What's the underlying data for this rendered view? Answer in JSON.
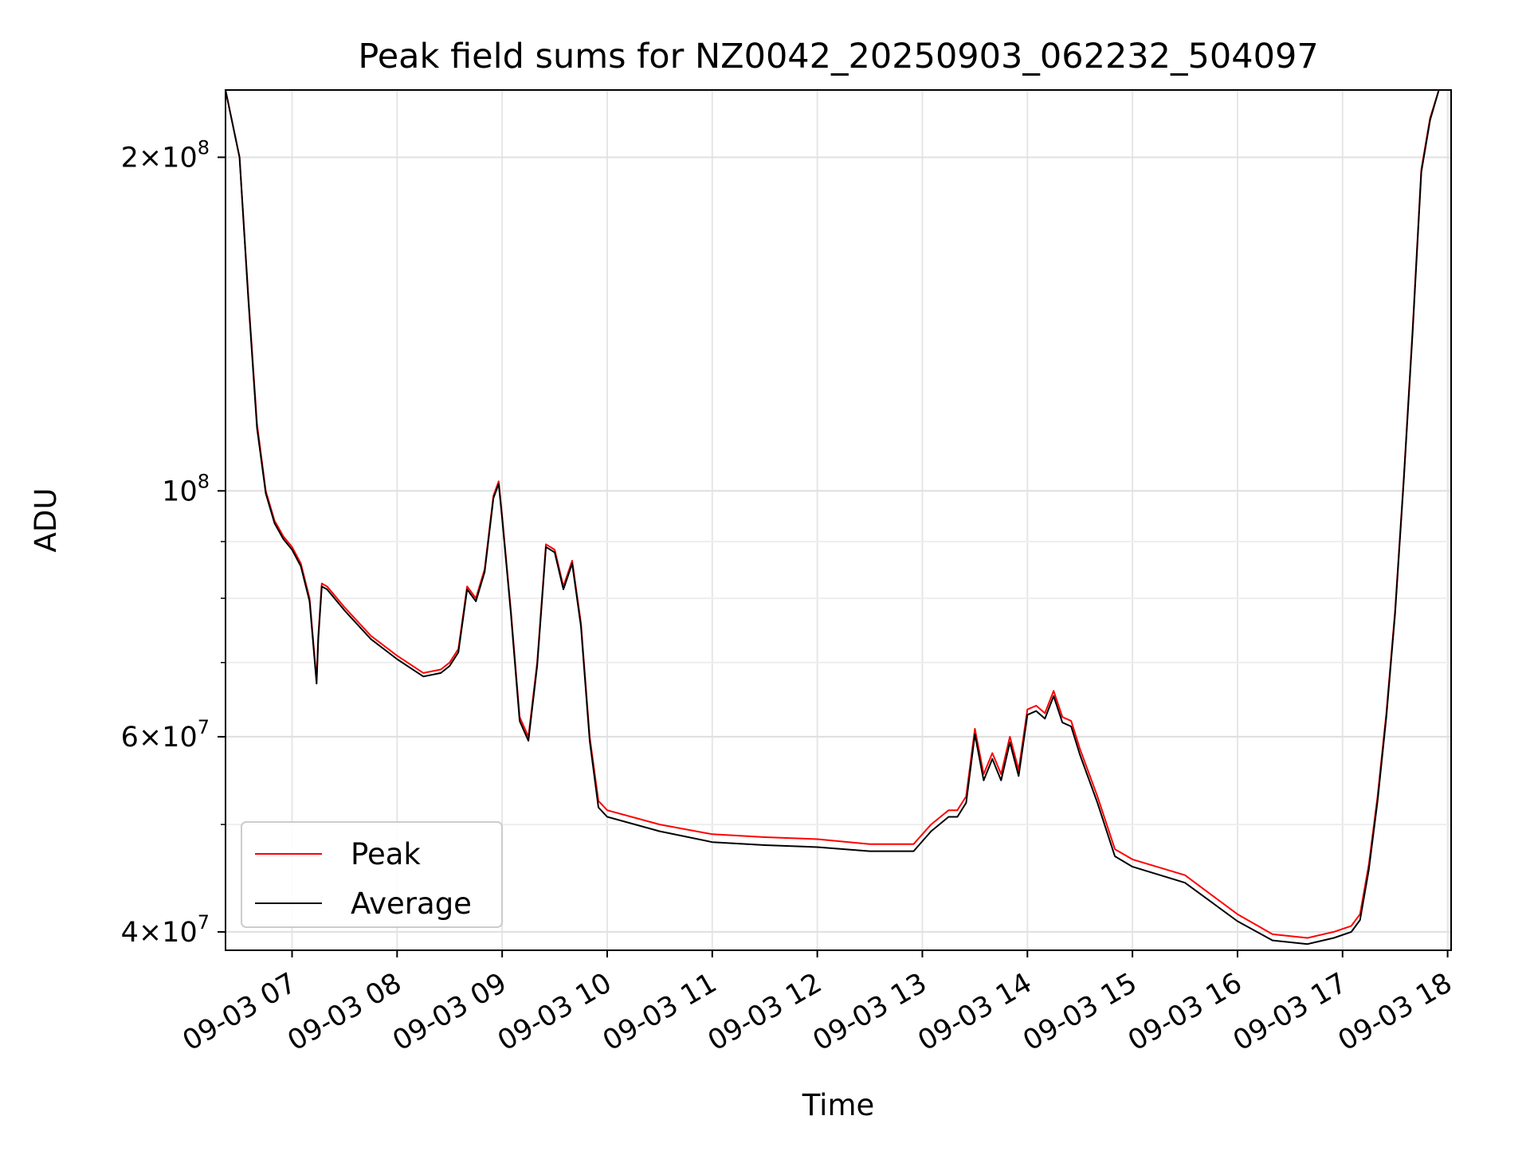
{
  "chart_data": {
    "type": "line",
    "title": "Peak field sums for NZ0042_20250903_062232_504097",
    "xlabel": "Time",
    "ylabel": "ADU",
    "yscale": "log",
    "grid": true,
    "legend_position": "lower-left",
    "x_ticks": [
      "09-03 07",
      "09-03 08",
      "09-03 09",
      "09-03 10",
      "09-03 11",
      "09-03 12",
      "09-03 13",
      "09-03 14",
      "09-03 15",
      "09-03 16",
      "09-03 17",
      "09-03 18"
    ],
    "y_ticks": [
      {
        "value": 40000000,
        "mantissa": "4",
        "exponent": "7"
      },
      {
        "value": 60000000,
        "mantissa": "6",
        "exponent": "7"
      },
      {
        "value": 100000000,
        "mantissa": "",
        "exponent": "8"
      },
      {
        "value": 200000000,
        "mantissa": "2",
        "exponent": "8"
      }
    ],
    "xlim": [
      "2025-09-03 06:22",
      "2025-09-03 18:02"
    ],
    "ylim": [
      38500000,
      230000000
    ],
    "series": [
      {
        "name": "Peak",
        "color": "#ff0000",
        "x": [
          "2025-09-03 06:22",
          "2025-09-03 06:30",
          "2025-09-03 06:35",
          "2025-09-03 06:40",
          "2025-09-03 06:45",
          "2025-09-03 06:50",
          "2025-09-03 06:55",
          "2025-09-03 07:00",
          "2025-09-03 07:05",
          "2025-09-03 07:10",
          "2025-09-03 07:14",
          "2025-09-03 07:15",
          "2025-09-03 07:17",
          "2025-09-03 07:20",
          "2025-09-03 07:30",
          "2025-09-03 07:45",
          "2025-09-03 08:00",
          "2025-09-03 08:15",
          "2025-09-03 08:25",
          "2025-09-03 08:30",
          "2025-09-03 08:35",
          "2025-09-03 08:40",
          "2025-09-03 08:45",
          "2025-09-03 08:50",
          "2025-09-03 08:55",
          "2025-09-03 08:58",
          "2025-09-03 09:00",
          "2025-09-03 09:05",
          "2025-09-03 09:10",
          "2025-09-03 09:15",
          "2025-09-03 09:20",
          "2025-09-03 09:25",
          "2025-09-03 09:30",
          "2025-09-03 09:35",
          "2025-09-03 09:40",
          "2025-09-03 09:45",
          "2025-09-03 09:50",
          "2025-09-03 09:55",
          "2025-09-03 10:00",
          "2025-09-03 10:30",
          "2025-09-03 11:00",
          "2025-09-03 11:30",
          "2025-09-03 12:00",
          "2025-09-03 12:30",
          "2025-09-03 12:55",
          "2025-09-03 13:05",
          "2025-09-03 13:15",
          "2025-09-03 13:20",
          "2025-09-03 13:25",
          "2025-09-03 13:30",
          "2025-09-03 13:35",
          "2025-09-03 13:40",
          "2025-09-03 13:45",
          "2025-09-03 13:50",
          "2025-09-03 13:55",
          "2025-09-03 14:00",
          "2025-09-03 14:05",
          "2025-09-03 14:10",
          "2025-09-03 14:15",
          "2025-09-03 14:20",
          "2025-09-03 14:25",
          "2025-09-03 14:30",
          "2025-09-03 14:40",
          "2025-09-03 14:50",
          "2025-09-03 15:00",
          "2025-09-03 15:30",
          "2025-09-03 16:00",
          "2025-09-03 16:20",
          "2025-09-03 16:40",
          "2025-09-03 16:55",
          "2025-09-03 17:05",
          "2025-09-03 17:10",
          "2025-09-03 17:15",
          "2025-09-03 17:20",
          "2025-09-03 17:25",
          "2025-09-03 17:30",
          "2025-09-03 17:35",
          "2025-09-03 17:40",
          "2025-09-03 17:45",
          "2025-09-03 17:50",
          "2025-09-03 17:55",
          "2025-09-03 18:00"
        ],
        "values": [
          230000000,
          200000000,
          150000000,
          115000000,
          100000000,
          94000000,
          91000000,
          89000000,
          86000000,
          80000000,
          67500000,
          74000000,
          82500000,
          82000000,
          78500000,
          74000000,
          71000000,
          68500000,
          69000000,
          70000000,
          72000000,
          82000000,
          80000000,
          85000000,
          99000000,
          102000000,
          95000000,
          78000000,
          62500000,
          60000000,
          70000000,
          89500000,
          88500000,
          82000000,
          86500000,
          76000000,
          60000000,
          52500000,
          51500000,
          50000000,
          49000000,
          48700000,
          48500000,
          48000000,
          48000000,
          50000000,
          51500000,
          51500000,
          53000000,
          61000000,
          55500000,
          58000000,
          55500000,
          60000000,
          56000000,
          63500000,
          64000000,
          63000000,
          66000000,
          62500000,
          62000000,
          58500000,
          53000000,
          47500000,
          46500000,
          45000000,
          41500000,
          39800000,
          39500000,
          40000000,
          40500000,
          41500000,
          46000000,
          53000000,
          63000000,
          78000000,
          103000000,
          140000000,
          195000000,
          217000000,
          230000000,
          230000000
        ]
      },
      {
        "name": "Average",
        "color": "#000000",
        "x": [
          "2025-09-03 06:22",
          "2025-09-03 06:30",
          "2025-09-03 06:35",
          "2025-09-03 06:40",
          "2025-09-03 06:45",
          "2025-09-03 06:50",
          "2025-09-03 06:55",
          "2025-09-03 07:00",
          "2025-09-03 07:05",
          "2025-09-03 07:10",
          "2025-09-03 07:14",
          "2025-09-03 07:15",
          "2025-09-03 07:17",
          "2025-09-03 07:20",
          "2025-09-03 07:30",
          "2025-09-03 07:45",
          "2025-09-03 08:00",
          "2025-09-03 08:15",
          "2025-09-03 08:25",
          "2025-09-03 08:30",
          "2025-09-03 08:35",
          "2025-09-03 08:40",
          "2025-09-03 08:45",
          "2025-09-03 08:50",
          "2025-09-03 08:55",
          "2025-09-03 08:58",
          "2025-09-03 09:00",
          "2025-09-03 09:05",
          "2025-09-03 09:10",
          "2025-09-03 09:15",
          "2025-09-03 09:20",
          "2025-09-03 09:25",
          "2025-09-03 09:30",
          "2025-09-03 09:35",
          "2025-09-03 09:40",
          "2025-09-03 09:45",
          "2025-09-03 09:50",
          "2025-09-03 09:55",
          "2025-09-03 10:00",
          "2025-09-03 10:30",
          "2025-09-03 11:00",
          "2025-09-03 11:30",
          "2025-09-03 12:00",
          "2025-09-03 12:30",
          "2025-09-03 12:55",
          "2025-09-03 13:05",
          "2025-09-03 13:15",
          "2025-09-03 13:20",
          "2025-09-03 13:25",
          "2025-09-03 13:30",
          "2025-09-03 13:35",
          "2025-09-03 13:40",
          "2025-09-03 13:45",
          "2025-09-03 13:50",
          "2025-09-03 13:55",
          "2025-09-03 14:00",
          "2025-09-03 14:05",
          "2025-09-03 14:10",
          "2025-09-03 14:15",
          "2025-09-03 14:20",
          "2025-09-03 14:25",
          "2025-09-03 14:30",
          "2025-09-03 14:40",
          "2025-09-03 14:50",
          "2025-09-03 15:00",
          "2025-09-03 15:30",
          "2025-09-03 16:00",
          "2025-09-03 16:20",
          "2025-09-03 16:40",
          "2025-09-03 16:55",
          "2025-09-03 17:05",
          "2025-09-03 17:10",
          "2025-09-03 17:15",
          "2025-09-03 17:20",
          "2025-09-03 17:25",
          "2025-09-03 17:30",
          "2025-09-03 17:35",
          "2025-09-03 17:40",
          "2025-09-03 17:45",
          "2025-09-03 17:50",
          "2025-09-03 17:55",
          "2025-09-03 18:00"
        ],
        "values": [
          230000000,
          200000000,
          149000000,
          114000000,
          99500000,
          93500000,
          90500000,
          88500000,
          85500000,
          79500000,
          67000000,
          73500000,
          82000000,
          81500000,
          78000000,
          73500000,
          70500000,
          68000000,
          68500000,
          69500000,
          71500000,
          81500000,
          79500000,
          84500000,
          98500000,
          101500000,
          94500000,
          77500000,
          62000000,
          59500000,
          69500000,
          89000000,
          88000000,
          81500000,
          86000000,
          75500000,
          59500000,
          51800000,
          50800000,
          49300000,
          48200000,
          47900000,
          47700000,
          47300000,
          47300000,
          49300000,
          50800000,
          50800000,
          52300000,
          60300000,
          54800000,
          57300000,
          54800000,
          59300000,
          55300000,
          62800000,
          63300000,
          62300000,
          65300000,
          61800000,
          61300000,
          57800000,
          52300000,
          46800000,
          45800000,
          44300000,
          40900000,
          39300000,
          39000000,
          39500000,
          40000000,
          41000000,
          45500000,
          52500000,
          62500000,
          77500000,
          102500000,
          139000000,
          194000000,
          216000000,
          230000000,
          230000000
        ]
      }
    ]
  }
}
